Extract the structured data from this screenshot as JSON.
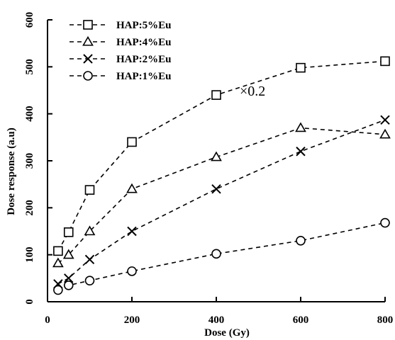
{
  "chart_data": {
    "type": "line",
    "xlabel": "Dose (Gy)",
    "ylabel": "Dose response (a.u)",
    "xlim": [
      0,
      800
    ],
    "ylim": [
      0,
      600
    ],
    "xticks": [
      "0",
      "200",
      "400",
      "600",
      "800"
    ],
    "yticks": [
      "0",
      "100",
      "200",
      "300",
      "400",
      "500",
      "600"
    ],
    "x": [
      25,
      50,
      100,
      200,
      400,
      600,
      800
    ],
    "series": [
      {
        "name": "HAP:5%Eu",
        "marker": "square",
        "values": [
          108,
          148,
          238,
          340,
          440,
          498,
          512
        ]
      },
      {
        "name": "HAP:4%Eu",
        "marker": "triangle",
        "values": [
          82,
          100,
          150,
          240,
          308,
          370,
          356
        ]
      },
      {
        "name": "HAP:2%Eu",
        "marker": "x",
        "values": [
          38,
          50,
          90,
          150,
          240,
          320,
          387
        ]
      },
      {
        "name": "HAP:1%Eu",
        "marker": "circle",
        "values": [
          25,
          35,
          45,
          65,
          102,
          130,
          168
        ]
      }
    ],
    "annotations": [
      "×0.2"
    ],
    "legend_position": "top-left",
    "grid": false
  }
}
